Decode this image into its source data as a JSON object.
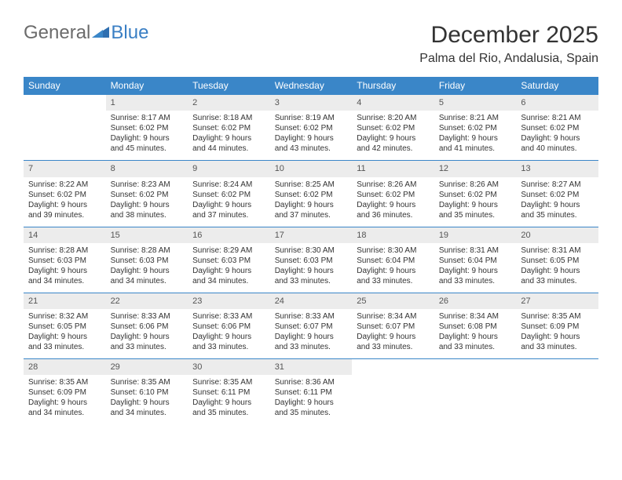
{
  "logo": {
    "word1": "General",
    "word2": "Blue"
  },
  "title": "December 2025",
  "location": "Palma del Rio, Andalusia, Spain",
  "weekdays": [
    "Sunday",
    "Monday",
    "Tuesday",
    "Wednesday",
    "Thursday",
    "Friday",
    "Saturday"
  ],
  "colors": {
    "header_bg": "#3a86c8",
    "header_fg": "#ffffff",
    "daynum_bg": "#ececec",
    "row_border": "#3a86c8",
    "logo_blue": "#3a7fc4",
    "logo_gray": "#6b6b6b",
    "text": "#333333",
    "background": "#ffffff"
  },
  "typography": {
    "title_fontsize": 30,
    "location_fontsize": 16,
    "weekday_fontsize": 12,
    "daynum_fontsize": 11,
    "cell_fontsize": 10,
    "logo_fontsize": 24
  },
  "weeks": [
    [
      {
        "n": "",
        "lines": [
          "",
          "",
          "",
          ""
        ]
      },
      {
        "n": "1",
        "lines": [
          "Sunrise: 8:17 AM",
          "Sunset: 6:02 PM",
          "Daylight: 9 hours",
          "and 45 minutes."
        ]
      },
      {
        "n": "2",
        "lines": [
          "Sunrise: 8:18 AM",
          "Sunset: 6:02 PM",
          "Daylight: 9 hours",
          "and 44 minutes."
        ]
      },
      {
        "n": "3",
        "lines": [
          "Sunrise: 8:19 AM",
          "Sunset: 6:02 PM",
          "Daylight: 9 hours",
          "and 43 minutes."
        ]
      },
      {
        "n": "4",
        "lines": [
          "Sunrise: 8:20 AM",
          "Sunset: 6:02 PM",
          "Daylight: 9 hours",
          "and 42 minutes."
        ]
      },
      {
        "n": "5",
        "lines": [
          "Sunrise: 8:21 AM",
          "Sunset: 6:02 PM",
          "Daylight: 9 hours",
          "and 41 minutes."
        ]
      },
      {
        "n": "6",
        "lines": [
          "Sunrise: 8:21 AM",
          "Sunset: 6:02 PM",
          "Daylight: 9 hours",
          "and 40 minutes."
        ]
      }
    ],
    [
      {
        "n": "7",
        "lines": [
          "Sunrise: 8:22 AM",
          "Sunset: 6:02 PM",
          "Daylight: 9 hours",
          "and 39 minutes."
        ]
      },
      {
        "n": "8",
        "lines": [
          "Sunrise: 8:23 AM",
          "Sunset: 6:02 PM",
          "Daylight: 9 hours",
          "and 38 minutes."
        ]
      },
      {
        "n": "9",
        "lines": [
          "Sunrise: 8:24 AM",
          "Sunset: 6:02 PM",
          "Daylight: 9 hours",
          "and 37 minutes."
        ]
      },
      {
        "n": "10",
        "lines": [
          "Sunrise: 8:25 AM",
          "Sunset: 6:02 PM",
          "Daylight: 9 hours",
          "and 37 minutes."
        ]
      },
      {
        "n": "11",
        "lines": [
          "Sunrise: 8:26 AM",
          "Sunset: 6:02 PM",
          "Daylight: 9 hours",
          "and 36 minutes."
        ]
      },
      {
        "n": "12",
        "lines": [
          "Sunrise: 8:26 AM",
          "Sunset: 6:02 PM",
          "Daylight: 9 hours",
          "and 35 minutes."
        ]
      },
      {
        "n": "13",
        "lines": [
          "Sunrise: 8:27 AM",
          "Sunset: 6:02 PM",
          "Daylight: 9 hours",
          "and 35 minutes."
        ]
      }
    ],
    [
      {
        "n": "14",
        "lines": [
          "Sunrise: 8:28 AM",
          "Sunset: 6:03 PM",
          "Daylight: 9 hours",
          "and 34 minutes."
        ]
      },
      {
        "n": "15",
        "lines": [
          "Sunrise: 8:28 AM",
          "Sunset: 6:03 PM",
          "Daylight: 9 hours",
          "and 34 minutes."
        ]
      },
      {
        "n": "16",
        "lines": [
          "Sunrise: 8:29 AM",
          "Sunset: 6:03 PM",
          "Daylight: 9 hours",
          "and 34 minutes."
        ]
      },
      {
        "n": "17",
        "lines": [
          "Sunrise: 8:30 AM",
          "Sunset: 6:03 PM",
          "Daylight: 9 hours",
          "and 33 minutes."
        ]
      },
      {
        "n": "18",
        "lines": [
          "Sunrise: 8:30 AM",
          "Sunset: 6:04 PM",
          "Daylight: 9 hours",
          "and 33 minutes."
        ]
      },
      {
        "n": "19",
        "lines": [
          "Sunrise: 8:31 AM",
          "Sunset: 6:04 PM",
          "Daylight: 9 hours",
          "and 33 minutes."
        ]
      },
      {
        "n": "20",
        "lines": [
          "Sunrise: 8:31 AM",
          "Sunset: 6:05 PM",
          "Daylight: 9 hours",
          "and 33 minutes."
        ]
      }
    ],
    [
      {
        "n": "21",
        "lines": [
          "Sunrise: 8:32 AM",
          "Sunset: 6:05 PM",
          "Daylight: 9 hours",
          "and 33 minutes."
        ]
      },
      {
        "n": "22",
        "lines": [
          "Sunrise: 8:33 AM",
          "Sunset: 6:06 PM",
          "Daylight: 9 hours",
          "and 33 minutes."
        ]
      },
      {
        "n": "23",
        "lines": [
          "Sunrise: 8:33 AM",
          "Sunset: 6:06 PM",
          "Daylight: 9 hours",
          "and 33 minutes."
        ]
      },
      {
        "n": "24",
        "lines": [
          "Sunrise: 8:33 AM",
          "Sunset: 6:07 PM",
          "Daylight: 9 hours",
          "and 33 minutes."
        ]
      },
      {
        "n": "25",
        "lines": [
          "Sunrise: 8:34 AM",
          "Sunset: 6:07 PM",
          "Daylight: 9 hours",
          "and 33 minutes."
        ]
      },
      {
        "n": "26",
        "lines": [
          "Sunrise: 8:34 AM",
          "Sunset: 6:08 PM",
          "Daylight: 9 hours",
          "and 33 minutes."
        ]
      },
      {
        "n": "27",
        "lines": [
          "Sunrise: 8:35 AM",
          "Sunset: 6:09 PM",
          "Daylight: 9 hours",
          "and 33 minutes."
        ]
      }
    ],
    [
      {
        "n": "28",
        "lines": [
          "Sunrise: 8:35 AM",
          "Sunset: 6:09 PM",
          "Daylight: 9 hours",
          "and 34 minutes."
        ]
      },
      {
        "n": "29",
        "lines": [
          "Sunrise: 8:35 AM",
          "Sunset: 6:10 PM",
          "Daylight: 9 hours",
          "and 34 minutes."
        ]
      },
      {
        "n": "30",
        "lines": [
          "Sunrise: 8:35 AM",
          "Sunset: 6:11 PM",
          "Daylight: 9 hours",
          "and 35 minutes."
        ]
      },
      {
        "n": "31",
        "lines": [
          "Sunrise: 8:36 AM",
          "Sunset: 6:11 PM",
          "Daylight: 9 hours",
          "and 35 minutes."
        ]
      },
      {
        "n": "",
        "lines": [
          "",
          "",
          "",
          ""
        ]
      },
      {
        "n": "",
        "lines": [
          "",
          "",
          "",
          ""
        ]
      },
      {
        "n": "",
        "lines": [
          "",
          "",
          "",
          ""
        ]
      }
    ]
  ]
}
